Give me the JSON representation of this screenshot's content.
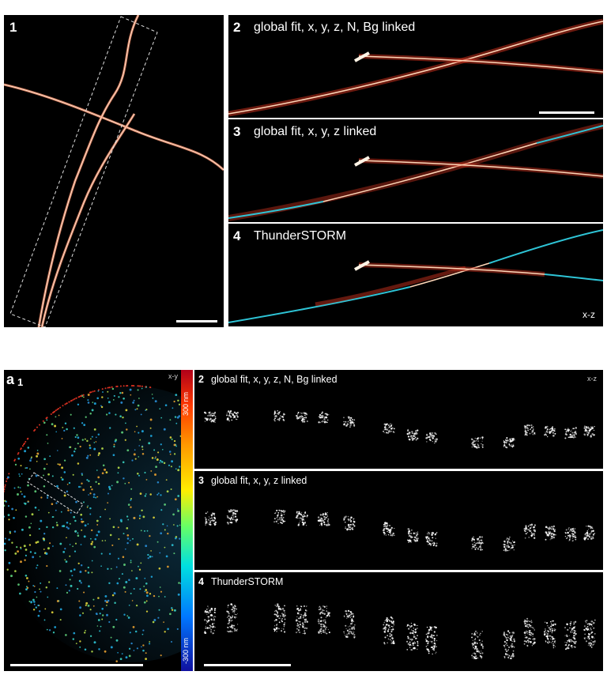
{
  "top": {
    "panel1": {
      "number": "1"
    },
    "panel2": {
      "number": "2",
      "title": "global fit, x, y, z, N, Bg linked"
    },
    "panel3": {
      "number": "3",
      "title": "global fit, x, y, z linked"
    },
    "panel4": {
      "number": "4",
      "title": "ThunderSTORM",
      "view_label": "x-z"
    }
  },
  "bottom": {
    "panel_a1": {
      "letter": "a",
      "number": "1",
      "view_label": "x-y"
    },
    "colorbar": {
      "top_label": "300 nm",
      "bottom_label": "-300 nm"
    },
    "panel2": {
      "number": "2",
      "title": "global fit, x, y, z, N, Bg linked",
      "view_label": "x-z"
    },
    "panel3": {
      "number": "3",
      "title": "global fit, x, y, z linked"
    },
    "panel4": {
      "number": "4",
      "title": "ThunderSTORM"
    }
  },
  "colors": {
    "filament": "#f4a07a",
    "filament_core": "#ffe6cf",
    "cyan": "#2ec4d6",
    "red_scatter": "#c8321e"
  }
}
